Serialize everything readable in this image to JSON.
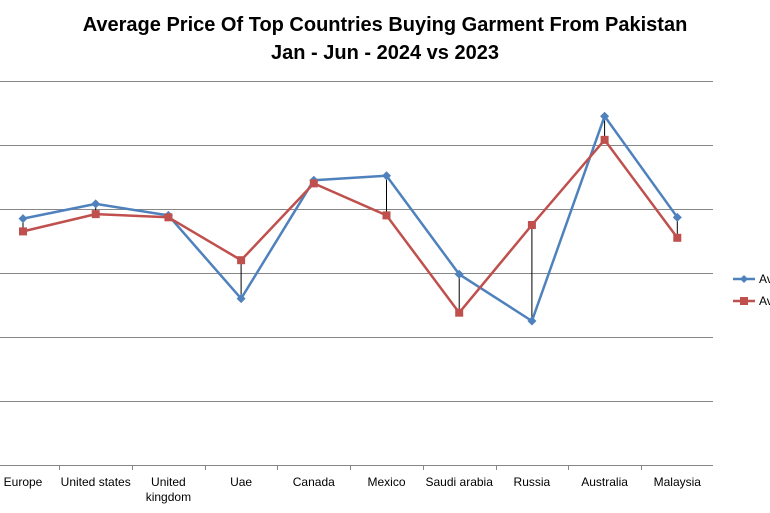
{
  "chart_data": {
    "type": "line",
    "title_lines": [
      "Average Price Of Top Countries Buying Garment From Pakistan",
      "Jan - Jun - 2024 vs 2023"
    ],
    "categories": [
      "Europe",
      "United states",
      "United kingdom",
      "Uae",
      "Canada",
      "Mexico",
      "Saudi arabia",
      "Russia",
      "Australia",
      "Malaysia"
    ],
    "category_lines": [
      [
        "Europe"
      ],
      [
        "United states"
      ],
      [
        "United",
        "kingdom"
      ],
      [
        "Uae"
      ],
      [
        "Canada"
      ],
      [
        "Mexico"
      ],
      [
        "Saudi arabia"
      ],
      [
        "Russia"
      ],
      [
        "Australia"
      ],
      [
        "Malaysia"
      ]
    ],
    "series": [
      {
        "name": "Av",
        "color": "#4F81BD",
        "marker": "diamond",
        "values": [
          3.85,
          4.08,
          3.9,
          2.6,
          4.45,
          4.52,
          2.98,
          2.25,
          5.45,
          3.87
        ]
      },
      {
        "name": "Av",
        "color": "#C0504D",
        "marker": "square",
        "values": [
          3.65,
          3.92,
          3.87,
          3.2,
          4.4,
          3.9,
          2.38,
          3.75,
          5.08,
          3.55
        ]
      }
    ],
    "ylim": [
      0,
      6
    ],
    "y_gridlines": 6,
    "show_y_tick_labels": false,
    "grid": true,
    "high_low_lines": true,
    "legend": "right"
  }
}
